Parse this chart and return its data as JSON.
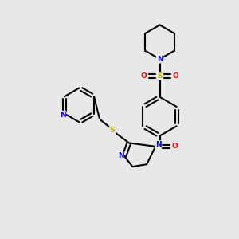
{
  "background_color": "#e8e8e8",
  "bond_color": "#000000",
  "atom_colors": {
    "N": "#0000ff",
    "O": "#ff0000",
    "S": "#ccaa00",
    "C": "#000000"
  },
  "figsize": [
    3.0,
    3.0
  ],
  "dpi": 100
}
